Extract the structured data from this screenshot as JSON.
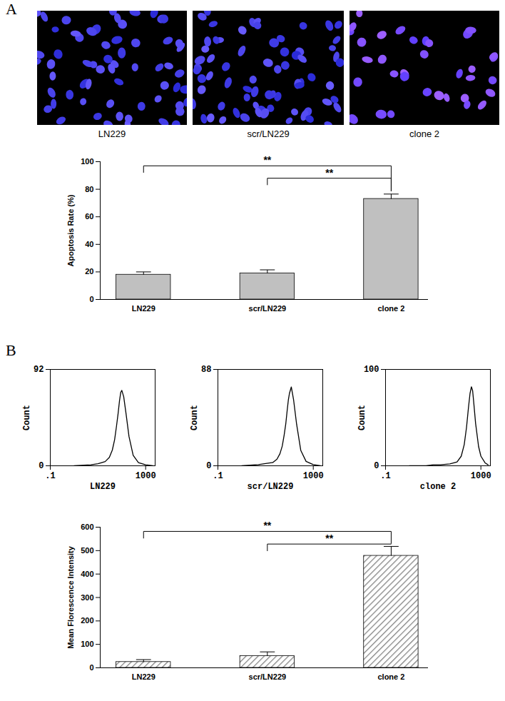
{
  "figure": {
    "panel_labels": [
      "A",
      "B"
    ],
    "image_captions": [
      "LN229",
      "scr/LN229",
      "clone 2"
    ]
  },
  "chart_data": [
    {
      "type": "bar",
      "categories": [
        "LN229",
        "scr/LN229",
        "clone 2"
      ],
      "values": [
        18,
        19,
        73
      ],
      "errors": [
        2,
        2.5,
        3.5
      ],
      "ylabel": "Apoptosis Rate (%)",
      "ylim": [
        0,
        100
      ],
      "yticks": [
        0,
        20,
        40,
        60,
        80,
        100
      ],
      "color": "#c0c0c0",
      "significance": [
        {
          "from": "LN229",
          "to": "clone 2",
          "label": "**"
        },
        {
          "from": "scr/LN229",
          "to": "clone 2",
          "label": "**"
        }
      ]
    },
    {
      "type": "line",
      "log": "x",
      "xlabel": "LN229",
      "ylabel": "Count",
      "x": [
        1,
        5,
        10,
        20,
        30,
        40,
        50,
        60,
        70,
        80,
        90,
        100,
        120,
        150,
        200,
        300,
        500,
        1000,
        2000
      ],
      "values": [
        0,
        1,
        2,
        4,
        8,
        15,
        25,
        38,
        50,
        62,
        70,
        72,
        66,
        50,
        28,
        10,
        3,
        1,
        0
      ],
      "xlim": [
        0.1,
        2500
      ],
      "xticks": [
        {
          "value": 0.1,
          "label": ".1"
        },
        1000
      ],
      "ylim": [
        0,
        92
      ],
      "yticks": [
        0,
        92
      ],
      "color": "#000000"
    },
    {
      "type": "line",
      "log": "x",
      "xlabel": "scr/LN229",
      "ylabel": "Count",
      "x": [
        1,
        5,
        10,
        20,
        30,
        40,
        50,
        60,
        70,
        80,
        90,
        100,
        120,
        150,
        200,
        300,
        500,
        1000,
        2000
      ],
      "values": [
        0,
        1,
        2,
        3,
        6,
        11,
        18,
        28,
        38,
        50,
        60,
        66,
        72,
        60,
        38,
        14,
        4,
        1,
        0
      ],
      "xlim": [
        0.1,
        2500
      ],
      "xticks": [
        {
          "value": 0.1,
          "label": ".1"
        },
        1000
      ],
      "ylim": [
        0,
        88
      ],
      "yticks": [
        0,
        88
      ],
      "color": "#000000"
    },
    {
      "type": "line",
      "log": "x",
      "xlabel": "clone 2",
      "ylabel": "Count",
      "x": [
        1,
        5,
        10,
        20,
        50,
        100,
        150,
        200,
        250,
        300,
        350,
        400,
        450,
        500,
        600,
        800,
        1000,
        1500,
        2000
      ],
      "values": [
        0,
        0,
        1,
        1,
        2,
        4,
        10,
        22,
        40,
        60,
        75,
        82,
        78,
        66,
        44,
        20,
        10,
        3,
        1
      ],
      "xlim": [
        0.1,
        2500
      ],
      "xticks": [
        {
          "value": 0.1,
          "label": ".1"
        },
        1000
      ],
      "ylim": [
        0,
        100
      ],
      "yticks": [
        0,
        100
      ],
      "color": "#000000"
    },
    {
      "type": "bar",
      "categories": [
        "LN229",
        "scr/LN229",
        "clone 2"
      ],
      "values": [
        25,
        50,
        478
      ],
      "errors": [
        10,
        18,
        40
      ],
      "ylabel": "Mean Florescence Intensity",
      "ylim": [
        0,
        600
      ],
      "yticks": [
        0,
        100,
        200,
        300,
        400,
        500,
        600
      ],
      "color": "#808080",
      "significance": [
        {
          "from": "LN229",
          "to": "clone 2",
          "label": "**"
        },
        {
          "from": "scr/LN229",
          "to": "clone 2",
          "label": "**"
        }
      ]
    }
  ]
}
